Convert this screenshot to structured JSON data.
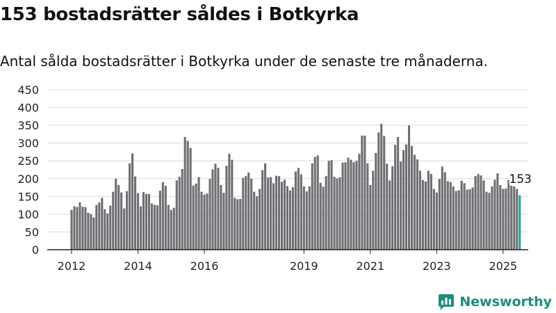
{
  "title": "153 bostadsrätter såldes i Botkyrka",
  "subtitle": "Antal sålda bostadsrätter i Botkyrka under de senaste tre månaderna.",
  "brand": {
    "name": "Newsworthy",
    "icon": "newsworthy-logo-icon",
    "color": "#1e8c80"
  },
  "chart_data": {
    "type": "bar",
    "title": "153 bostadsrätter såldes i Botkyrka",
    "subtitle": "Antal sålda bostadsrätter i Botkyrka under de senaste tre månaderna.",
    "xlabel": "",
    "ylabel": "",
    "ylim": [
      0,
      450
    ],
    "yticks": [
      0,
      50,
      100,
      150,
      200,
      250,
      300,
      350,
      400,
      450
    ],
    "xticks": [
      {
        "label": "2012",
        "index": 0
      },
      {
        "label": "2014",
        "index": 24
      },
      {
        "label": "2016",
        "index": 48
      },
      {
        "label": "2019",
        "index": 84
      },
      {
        "label": "2021",
        "index": 108
      },
      {
        "label": "2023",
        "index": 132
      },
      {
        "label": "2025",
        "index": 156
      }
    ],
    "grid": true,
    "legend": "none",
    "bar_color": "#6e6e73",
    "highlight_color": "#21a394",
    "annotation": {
      "text": "153",
      "index": 162
    },
    "values": [
      112,
      122,
      120,
      133,
      121,
      120,
      104,
      100,
      91,
      126,
      133,
      146,
      114,
      102,
      124,
      163,
      200,
      182,
      161,
      116,
      165,
      243,
      271,
      206,
      159,
      122,
      162,
      157,
      157,
      130,
      126,
      125,
      166,
      190,
      180,
      126,
      112,
      118,
      195,
      205,
      227,
      317,
      306,
      286,
      180,
      186,
      204,
      163,
      155,
      158,
      199,
      226,
      242,
      230,
      182,
      160,
      236,
      270,
      253,
      146,
      142,
      143,
      202,
      207,
      217,
      200,
      163,
      150,
      171,
      224,
      243,
      203,
      204,
      187,
      208,
      207,
      191,
      197,
      179,
      167,
      176,
      220,
      230,
      212,
      178,
      164,
      178,
      243,
      261,
      265,
      188,
      177,
      207,
      250,
      252,
      205,
      200,
      204,
      245,
      246,
      259,
      253,
      246,
      250,
      270,
      321,
      321,
      243,
      182,
      222,
      272,
      330,
      354,
      320,
      242,
      195,
      235,
      295,
      317,
      248,
      280,
      296,
      350,
      292,
      267,
      254,
      222,
      196,
      192,
      222,
      213,
      171,
      161,
      199,
      234,
      218,
      193,
      190,
      178,
      165,
      167,
      194,
      187,
      169,
      170,
      175,
      207,
      213,
      209,
      195,
      163,
      160,
      178,
      197,
      215,
      182,
      171,
      172,
      196,
      180,
      178,
      171,
      153
    ]
  }
}
